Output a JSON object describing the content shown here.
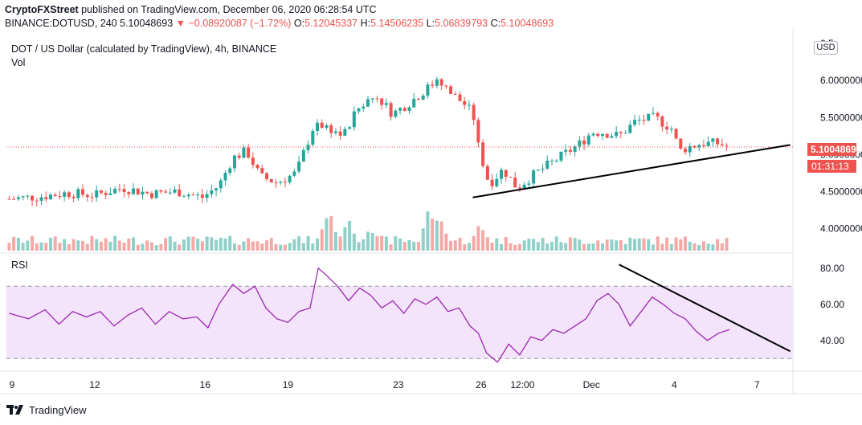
{
  "header": {
    "publisher": "CryptoFXStreet",
    "published_on": "published on TradingView.com, December 06, 2020 06:28:54 UTC",
    "symbol_line": "BINANCE:DOTUSD, 240",
    "last": "5.10048693",
    "change": "▼ −0.08920087 (−1.72%)",
    "o_label": "O:",
    "o_value": "5.12045337",
    "h_label": "H:",
    "h_value": "5.14506235",
    "l_label": "L:",
    "l_value": "5.06839793",
    "c_label": "C:",
    "c_value": "5.10048693"
  },
  "legend": {
    "title": "DOT / US Dollar (calculated by TradingView), 4h, BINANCE",
    "vol": "Vol",
    "rsi": "RSI"
  },
  "currency_badge": "USD",
  "price_tag": "5.10048693",
  "timer_tag": "01:31:13",
  "footer": {
    "logo_text": "TradingView"
  },
  "colors": {
    "up": "#26a69a",
    "down": "#ef5350",
    "rsi_line": "#9c27b0",
    "rsi_band": "#f3e4fb",
    "trendline": "#000000"
  },
  "chart_data": [
    {
      "type": "candlestick",
      "title": "DOT / US Dollar (calculated by TradingView), 4h, BINANCE",
      "y_tick_labels": [
        "6.5",
        "6.00000000",
        "5.50000000",
        "5.00000000",
        "4.50000000",
        "4.00000000"
      ],
      "y_ticks": [
        6.5,
        6.0,
        5.5,
        5.0,
        4.5,
        4.0
      ],
      "ylim": [
        3.7,
        6.6
      ],
      "x_tick_labels": [
        "9",
        "12",
        "16",
        "19",
        "23",
        "26",
        "12:00",
        "Dec",
        "4",
        "7"
      ],
      "x_tick_days": [
        9,
        12,
        16,
        19,
        23,
        26,
        27.5,
        30,
        33,
        36
      ],
      "xlim_days": [
        8.8,
        37.3
      ],
      "last_price": 5.10048693,
      "close_path": [
        [
          8.9,
          4.4
        ],
        [
          10.0,
          4.43
        ],
        [
          11.0,
          4.48
        ],
        [
          12.0,
          4.45
        ],
        [
          13.0,
          4.55
        ],
        [
          14.0,
          4.47
        ],
        [
          15.0,
          4.5
        ],
        [
          15.9,
          4.42
        ],
        [
          16.5,
          4.58
        ],
        [
          17.0,
          4.95
        ],
        [
          17.5,
          5.05
        ],
        [
          18.0,
          4.7
        ],
        [
          18.6,
          4.62
        ],
        [
          19.3,
          4.75
        ],
        [
          19.9,
          5.35
        ],
        [
          20.3,
          5.4
        ],
        [
          21.0,
          5.25
        ],
        [
          21.6,
          5.65
        ],
        [
          22.2,
          5.8
        ],
        [
          22.8,
          5.55
        ],
        [
          23.4,
          5.7
        ],
        [
          23.9,
          5.85
        ],
        [
          24.4,
          6.0
        ],
        [
          25.0,
          5.8
        ],
        [
          25.5,
          5.65
        ],
        [
          25.8,
          5.45
        ],
        [
          26.0,
          4.9
        ],
        [
          26.3,
          4.6
        ],
        [
          26.8,
          4.8
        ],
        [
          27.3,
          4.55
        ],
        [
          28.0,
          4.75
        ],
        [
          28.8,
          4.95
        ],
        [
          29.6,
          5.15
        ],
        [
          30.0,
          5.3
        ],
        [
          30.4,
          5.3
        ],
        [
          31.0,
          5.25
        ],
        [
          31.6,
          5.45
        ],
        [
          32.3,
          5.5
        ],
        [
          32.9,
          5.35
        ],
        [
          33.2,
          5.05
        ],
        [
          33.5,
          5.1
        ],
        [
          34.0,
          5.15
        ],
        [
          34.6,
          5.15
        ],
        [
          35.0,
          5.1
        ]
      ],
      "trendline": {
        "from": [
          25.7,
          4.42
        ],
        "to": [
          37.2,
          5.13
        ]
      }
    },
    {
      "type": "bar",
      "name": "Vol",
      "note": "relative volume bars (no axis)",
      "peaks": [
        [
          20.5,
          1.0
        ],
        [
          21.2,
          0.85
        ],
        [
          24.1,
          1.0
        ],
        [
          24.5,
          0.95
        ],
        [
          26.0,
          0.7
        ],
        [
          22.0,
          0.6
        ]
      ]
    },
    {
      "type": "line",
      "name": "RSI",
      "y_tick_labels": [
        "80.00",
        "60.00",
        "40.00"
      ],
      "y_ticks": [
        80,
        60,
        40
      ],
      "ylim": [
        23,
        87
      ],
      "band": [
        30,
        70
      ],
      "x": [
        8.9,
        9.6,
        10.2,
        10.7,
        11.2,
        11.7,
        12.2,
        12.7,
        13.2,
        13.7,
        14.2,
        14.7,
        15.2,
        15.7,
        16.1,
        16.5,
        17.0,
        17.4,
        17.8,
        18.2,
        18.6,
        19.0,
        19.4,
        19.8,
        20.1,
        20.4,
        20.8,
        21.2,
        21.6,
        22.0,
        22.4,
        22.8,
        23.2,
        23.6,
        24.0,
        24.4,
        24.8,
        25.2,
        25.6,
        25.9,
        26.2,
        26.6,
        27.0,
        27.4,
        27.8,
        28.2,
        28.6,
        29.0,
        29.4,
        29.8,
        30.2,
        30.6,
        31.0,
        31.4,
        31.8,
        32.2,
        32.6,
        33.0,
        33.4,
        33.8,
        34.2,
        34.6,
        35.0
      ],
      "values": [
        55,
        52,
        57,
        49,
        56,
        53,
        56,
        48,
        54,
        58,
        49,
        56,
        52,
        53,
        47,
        60,
        71,
        66,
        70,
        58,
        52,
        50,
        56,
        58,
        80,
        76,
        70,
        62,
        69,
        65,
        58,
        62,
        55,
        63,
        60,
        64,
        56,
        58,
        48,
        44,
        33,
        28,
        38,
        32,
        42,
        40,
        46,
        44,
        48,
        52,
        62,
        66,
        60,
        48,
        56,
        64,
        60,
        55,
        52,
        45,
        40,
        44,
        46
      ]
    }
  ]
}
